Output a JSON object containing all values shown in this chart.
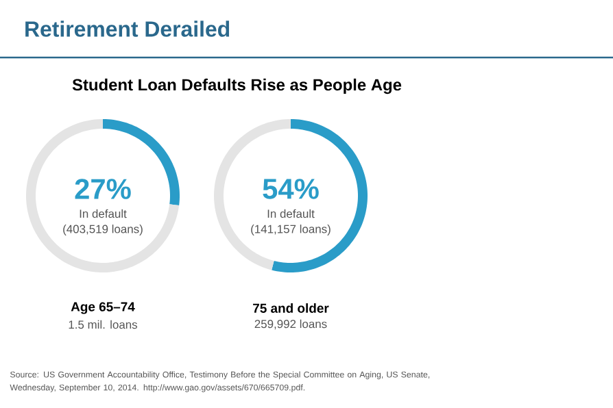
{
  "chart_data": [
    {
      "type": "donut",
      "title": "Retirement Derailed",
      "subtitle": "Student Loan Defaults Rise as People Age",
      "categories": [
        "In default",
        null
      ],
      "values": [
        27,
        73
      ],
      "colors": [
        "#2a9cc8",
        "#e4e4e4"
      ],
      "value_labels": [
        "27%",
        null
      ],
      "annotations": [
        "(403,519 loans)",
        "Age 65–74",
        "1.5 mil. loans",
        "Source: US Government Accountability Office, Testimony Before the Special Committee on Aging, US Senate, Wednesday, September 10, 2014. http://www.gao.gov/assets/670/665709.pdf."
      ]
    },
    {
      "type": "donut",
      "categories": [
        "In default",
        null
      ],
      "values": [
        54,
        46
      ],
      "colors": [
        "#2a9cc8",
        "#e4e4e4"
      ],
      "value_labels": [
        "54%",
        null
      ],
      "annotations": [
        "(141,157 loans)",
        "75 and older",
        "259,992 loans"
      ]
    }
  ]
}
